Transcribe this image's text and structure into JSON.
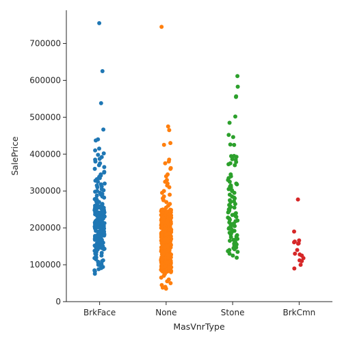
{
  "chart_data": {
    "type": "scatter",
    "subtype": "stripplot",
    "title": "",
    "xlabel": "MasVnrType",
    "ylabel": "SalePrice",
    "categories": [
      "BrkFace",
      "None",
      "Stone",
      "BrkCmn"
    ],
    "colors": [
      "#1f77b4",
      "#ff7f0e",
      "#2ca02c",
      "#d62728"
    ],
    "ylim": [
      0,
      790000
    ],
    "yticks": [
      0,
      100000,
      200000,
      300000,
      400000,
      500000,
      600000,
      700000
    ],
    "grid": false,
    "legend": "none",
    "series": [
      {
        "values": [
          755000,
          625000,
          538000,
          466500,
          440000,
          437000,
          415000,
          410000,
          402000,
          398000,
          392000,
          387000,
          385000,
          380000,
          375000,
          370000,
          365000,
          360000,
          352000,
          350000,
          345000,
          342000,
          340000,
          338000,
          335000,
          332000,
          330000,
          328000,
          325000,
          320000,
          318000,
          315000,
          312000,
          310000,
          305000,
          302000,
          300000,
          298000,
          295000,
          292000,
          290000,
          288000,
          285000,
          282000,
          280000,
          278000,
          275000,
          272000,
          270000,
          268000,
          265000,
          262000,
          260000,
          258000,
          255000,
          252000,
          250000,
          248000,
          245000,
          242000,
          240000,
          238000,
          235000,
          232000,
          230000,
          228000,
          225000,
          222000,
          220000,
          218000,
          215000,
          212000,
          210000,
          208000,
          205000,
          202000,
          200000,
          198000,
          195000,
          192000,
          190000,
          188000,
          185000,
          182000,
          180000,
          178000,
          175000,
          172000,
          170000,
          168000,
          165000,
          162000,
          160000,
          158000,
          155000,
          152000,
          150000,
          148000,
          145000,
          142000,
          140000,
          138000,
          135000,
          132000,
          130000,
          128000,
          125000,
          122000,
          120000,
          118000,
          115000,
          112000,
          110000,
          108000,
          105000,
          102000,
          100000,
          97000,
          94000,
          91000,
          88000,
          85000,
          82000,
          75500
        ],
        "density_boost": [
          [
            140000,
            260000,
            110
          ]
        ]
      },
      {
        "values": [
          745000,
          475000,
          465000,
          430000,
          425000,
          385000,
          380000,
          375000,
          362000,
          360000,
          345000,
          340000,
          330000,
          325000,
          320000,
          315000,
          310000,
          300000,
          295000,
          290000,
          285000,
          280000,
          275000,
          270000,
          265000,
          260000,
          255000,
          250000,
          245000,
          240000,
          235000,
          230000,
          225000,
          220000,
          215000,
          210000,
          205000,
          200000,
          195000,
          190000,
          185000,
          180000,
          175000,
          170000,
          165000,
          160000,
          155000,
          150000,
          145000,
          140000,
          135000,
          130000,
          125000,
          120000,
          115000,
          110000,
          105000,
          100000,
          95000,
          90000,
          85000,
          80000,
          75000,
          70000,
          65000,
          60000,
          55000,
          50000,
          45000,
          40000,
          38000,
          35311
        ],
        "density_boost": [
          [
            80000,
            250000,
            420
          ]
        ]
      },
      {
        "values": [
          611657,
          582933,
          556581,
          555000,
          501837,
          485000,
          451950,
          446261,
          426000,
          424870,
          395000,
          394617,
          392500,
          386250,
          385000,
          378500,
          375000,
          372500,
          370000,
          345000,
          340000,
          335000,
          330000,
          325000,
          320000,
          318000,
          315000,
          312000,
          310000,
          305000,
          302000,
          300000,
          295000,
          290000,
          285000,
          282000,
          280000,
          275000,
          272000,
          270000,
          265000,
          262000,
          260000,
          257000,
          255000,
          252000,
          250000,
          247000,
          245000,
          242000,
          240000,
          237000,
          235000,
          232000,
          230000,
          228000,
          225000,
          222000,
          220000,
          218000,
          215000,
          212000,
          210000,
          208000,
          205000,
          202000,
          200000,
          198000,
          195000,
          192000,
          190000,
          187000,
          185000,
          182000,
          180000,
          177000,
          175000,
          172000,
          170000,
          167000,
          165000,
          162000,
          160000,
          157000,
          155000,
          152000,
          150000,
          147000,
          145000,
          142000,
          140000,
          137000,
          135000,
          130000,
          125000,
          119000
        ],
        "density_boost": []
      },
      {
        "values": [
          277000,
          190000,
          166000,
          163000,
          161000,
          158000,
          157000,
          140000,
          130000,
          128000,
          125000,
          118000,
          112000,
          110000,
          100000,
          90000
        ],
        "density_boost": []
      }
    ]
  }
}
